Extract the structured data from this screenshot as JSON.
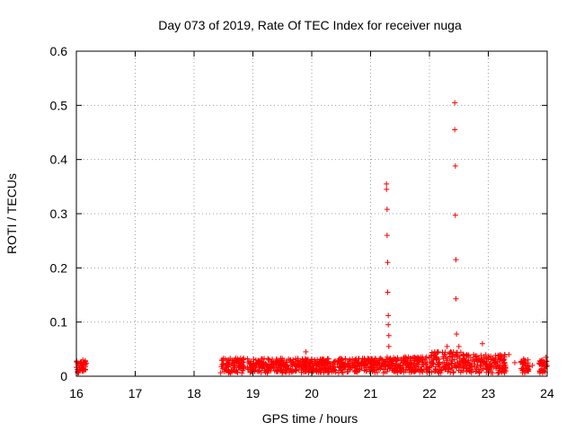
{
  "chart_data": {
    "type": "scatter",
    "title": "Day 073 of 2019, Rate Of TEC Index for receiver nuga",
    "xlabel": "GPS time / hours",
    "ylabel": "ROTI / TECUs",
    "xlim": [
      16,
      24
    ],
    "ylim": [
      0,
      0.6
    ],
    "x_ticks": [
      16,
      17,
      18,
      19,
      20,
      21,
      22,
      23,
      24
    ],
    "y_ticks": [
      0,
      0.1,
      0.2,
      0.3,
      0.4,
      0.5,
      0.6
    ],
    "x_tick_labels": [
      "16",
      "17",
      "18",
      "19",
      "20",
      "21",
      "22",
      "23",
      "24"
    ],
    "y_tick_labels": [
      "0",
      "0.1",
      "0.2",
      "0.3",
      "0.4",
      "0.5",
      "0.6"
    ],
    "grid": true,
    "marker": "+",
    "color": "#ff0000",
    "series": [
      {
        "name": "ROTI",
        "points": [
          [
            16.05,
            0.012
          ],
          [
            16.07,
            0.025
          ],
          [
            16.09,
            0.018
          ],
          [
            16.11,
            0.03
          ],
          [
            16.13,
            0.015
          ],
          [
            18.5,
            0.02
          ],
          [
            18.6,
            0.025
          ],
          [
            18.7,
            0.03
          ],
          [
            18.8,
            0.018
          ],
          [
            19.0,
            0.022
          ],
          [
            19.1,
            0.028
          ],
          [
            19.25,
            0.02
          ],
          [
            19.4,
            0.025
          ],
          [
            19.55,
            0.018
          ],
          [
            19.7,
            0.022
          ],
          [
            19.9,
            0.045
          ],
          [
            20.05,
            0.03
          ],
          [
            20.2,
            0.025
          ],
          [
            20.4,
            0.028
          ],
          [
            20.55,
            0.02
          ],
          [
            20.7,
            0.018
          ],
          [
            20.85,
            0.02
          ],
          [
            21.0,
            0.015
          ],
          [
            21.1,
            0.022
          ],
          [
            21.22,
            0.025
          ],
          [
            21.27,
            0.355
          ],
          [
            21.27,
            0.345
          ],
          [
            21.28,
            0.308
          ],
          [
            21.28,
            0.26
          ],
          [
            21.29,
            0.21
          ],
          [
            21.29,
            0.155
          ],
          [
            21.3,
            0.112
          ],
          [
            21.3,
            0.095
          ],
          [
            21.31,
            0.075
          ],
          [
            21.31,
            0.055
          ],
          [
            21.35,
            0.025
          ],
          [
            21.45,
            0.02
          ],
          [
            21.6,
            0.028
          ],
          [
            21.75,
            0.035
          ],
          [
            21.9,
            0.022
          ],
          [
            22.05,
            0.03
          ],
          [
            22.15,
            0.045
          ],
          [
            22.3,
            0.055
          ],
          [
            22.38,
            0.03
          ],
          [
            22.43,
            0.505
          ],
          [
            22.43,
            0.455
          ],
          [
            22.44,
            0.388
          ],
          [
            22.44,
            0.297
          ],
          [
            22.45,
            0.215
          ],
          [
            22.45,
            0.143
          ],
          [
            22.46,
            0.078
          ],
          [
            22.5,
            0.055
          ],
          [
            22.6,
            0.028
          ],
          [
            22.75,
            0.04
          ],
          [
            22.9,
            0.06
          ],
          [
            23.0,
            0.035
          ],
          [
            23.1,
            0.025
          ],
          [
            23.2,
            0.03
          ],
          [
            23.35,
            0.04
          ],
          [
            23.45,
            0.025
          ],
          [
            23.6,
            0.03
          ],
          [
            23.75,
            0.02
          ],
          [
            23.9,
            0.025
          ],
          [
            23.98,
            0.035
          ]
        ]
      }
    ],
    "dense_bands": [
      {
        "x_range": [
          16.0,
          16.17
        ],
        "y_range": [
          0.004,
          0.03
        ]
      },
      {
        "x_range": [
          18.45,
          18.85
        ],
        "y_range": [
          0.006,
          0.034
        ]
      },
      {
        "x_range": [
          18.9,
          21.2
        ],
        "y_range": [
          0.006,
          0.033
        ]
      },
      {
        "x_range": [
          21.2,
          22.0
        ],
        "y_range": [
          0.006,
          0.036
        ]
      },
      {
        "x_range": [
          22.0,
          22.6
        ],
        "y_range": [
          0.006,
          0.045
        ]
      },
      {
        "x_range": [
          22.6,
          23.3
        ],
        "y_range": [
          0.006,
          0.04
        ]
      },
      {
        "x_range": [
          23.55,
          23.7
        ],
        "y_range": [
          0.006,
          0.032
        ]
      },
      {
        "x_range": [
          23.85,
          24.0
        ],
        "y_range": [
          0.006,
          0.03
        ]
      }
    ]
  }
}
